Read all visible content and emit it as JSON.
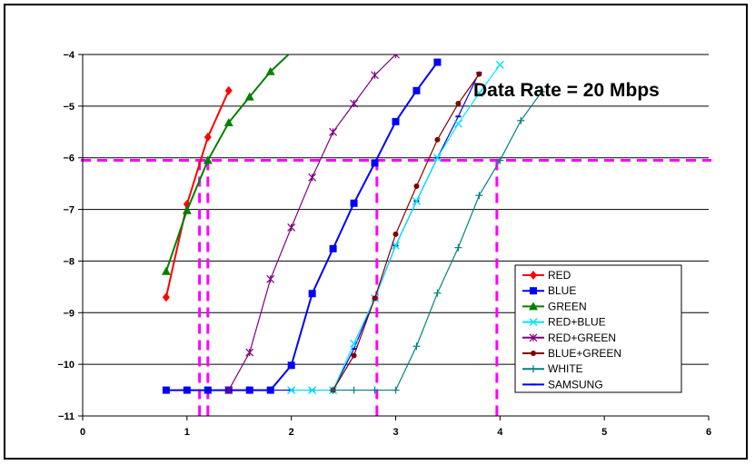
{
  "chart_data": {
    "type": "line",
    "title": "",
    "xlabel": "",
    "ylabel": "",
    "xlim": [
      0,
      6
    ],
    "ylim": [
      -11,
      -4
    ],
    "x_ticks": [
      0,
      1,
      2,
      3,
      4,
      5,
      6
    ],
    "y_ticks": [
      -11,
      -10,
      -9,
      -8,
      -7,
      -6,
      -5,
      -4
    ],
    "y_tick_labels": [
      "−11",
      "−10",
      "−9",
      "−8",
      "−7",
      "−6",
      "−5",
      "−4"
    ],
    "grid": "horizontal",
    "legend_position": "bottom-right",
    "annotation": "Data Rate = 20 Mbps",
    "reference_line": {
      "y": -6.05,
      "color": "#ff00ff",
      "x_markers": [
        1.12,
        1.2,
        2.82,
        3.97
      ]
    },
    "series": [
      {
        "name": "RED",
        "color": "#ff0000",
        "marker": "diamond",
        "x": [
          0.8,
          1.0,
          1.2,
          1.4
        ],
        "y": [
          -8.7,
          -6.9,
          -5.6,
          -4.7
        ]
      },
      {
        "name": "BLUE",
        "color": "#0000ff",
        "marker": "square",
        "x": [
          0.8,
          1.0,
          1.2,
          1.4,
          1.6,
          1.8,
          2.0,
          2.2,
          2.4,
          2.6,
          2.8,
          3.0,
          3.2,
          3.4
        ],
        "y": [
          -10.5,
          -10.5,
          -10.5,
          -10.5,
          -10.5,
          -10.5,
          -10.02,
          -8.63,
          -7.76,
          -6.88,
          -6.1,
          -5.3,
          -4.7,
          -4.15
        ]
      },
      {
        "name": "GREEN",
        "color": "#008000",
        "marker": "triangle",
        "x": [
          0.8,
          1.0,
          1.2,
          1.4,
          1.6,
          1.8,
          2.0
        ],
        "y": [
          -8.2,
          -7.02,
          -6.05,
          -5.32,
          -4.82,
          -4.33,
          -3.95
        ]
      },
      {
        "name": "RED+BLUE",
        "color": "#00e5ff",
        "marker": "x",
        "x": [
          2.0,
          2.2,
          2.4,
          2.6,
          2.8,
          3.0,
          3.2,
          3.4,
          3.6,
          3.8,
          4.0
        ],
        "y": [
          -10.5,
          -10.5,
          -10.5,
          -9.6,
          -8.72,
          -7.7,
          -6.84,
          -6.0,
          -5.34,
          -4.75,
          -4.2
        ]
      },
      {
        "name": "RED+GREEN",
        "color": "#800080",
        "marker": "star",
        "x": [
          1.4,
          1.6,
          1.8,
          2.0,
          2.2,
          2.4,
          2.6,
          2.8,
          3.0
        ],
        "y": [
          -10.5,
          -9.77,
          -8.35,
          -7.35,
          -6.38,
          -5.5,
          -4.95,
          -4.4,
          -4.0
        ]
      },
      {
        "name": "BLUE+GREEN",
        "color": "#800000",
        "marker": "circle",
        "x": [
          2.4,
          2.6,
          2.8,
          3.0,
          3.2,
          3.4,
          3.6,
          3.8
        ],
        "y": [
          -10.5,
          -9.83,
          -8.72,
          -7.48,
          -6.55,
          -5.65,
          -4.95,
          -4.38
        ]
      },
      {
        "name": "WHITE",
        "color": "#008080",
        "marker": "plus",
        "x": [
          2.4,
          2.6,
          2.8,
          3.0,
          3.2,
          3.4,
          3.6,
          3.8,
          4.0,
          4.2,
          4.4
        ],
        "y": [
          -10.5,
          -10.5,
          -10.5,
          -10.5,
          -9.65,
          -8.62,
          -7.74,
          -6.73,
          -6.05,
          -5.28,
          -4.72
        ]
      },
      {
        "name": "SAMSUNG",
        "color": "#0000ff",
        "marker": "dash",
        "x": [
          0.8,
          1.0,
          1.2,
          1.4,
          1.6,
          1.8,
          2.0,
          2.2,
          2.4,
          2.6,
          2.8,
          3.0,
          3.2,
          3.4,
          3.6,
          3.8
        ],
        "y": [
          -10.5,
          -10.5,
          -10.5,
          -10.5,
          -10.5,
          -10.5,
          -10.5,
          -10.5,
          -10.5,
          -9.7,
          -8.72,
          -7.7,
          -6.84,
          -6.0,
          -5.2,
          -4.35
        ]
      }
    ]
  }
}
